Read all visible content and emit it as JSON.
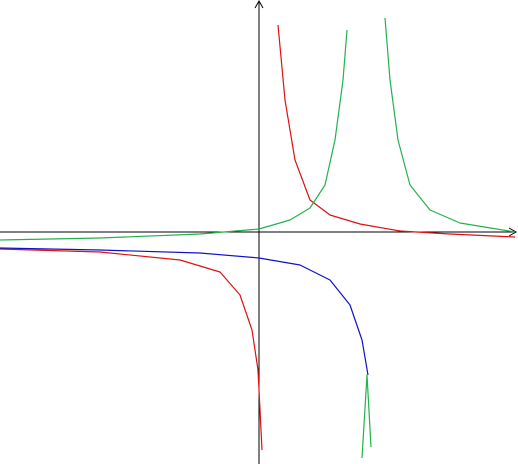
{
  "chart_data": {
    "type": "line",
    "xlim": [
      -5.18,
      5.18
    ],
    "ylim": [
      -4.64,
      4.64
    ],
    "axis_color": "#000000",
    "series": [
      {
        "color": "#dd1111",
        "x": [
          0.38,
          0.52,
          0.72,
          1.02,
          1.42,
          2.02,
          2.82,
          3.82,
          5.12,
          null,
          -5.18,
          -3.18,
          -1.58,
          -0.78,
          -0.38,
          -0.14,
          -0.02,
          0.06
        ],
        "values": [
          4.14,
          2.64,
          1.44,
          0.64,
          0.34,
          0.16,
          0.02,
          -0.04,
          -0.1,
          null,
          -0.34,
          -0.4,
          -0.56,
          -0.8,
          -1.26,
          -1.96,
          -2.76,
          -4.36
        ]
      },
      {
        "color": "#1111cc",
        "x": [
          -5.18,
          -3.18,
          -1.18,
          0,
          0.82,
          1.42,
          1.82,
          2.06,
          2.18
        ],
        "values": [
          -0.32,
          -0.36,
          -0.42,
          -0.52,
          -0.66,
          -0.96,
          -1.46,
          -2.16,
          -2.86
        ]
      },
      {
        "color": "#22b24c",
        "x": [
          -5.18,
          -3.18,
          -1.18,
          0,
          0.62,
          1.02,
          1.32,
          1.52,
          1.68,
          1.76,
          null,
          2.06,
          2.16,
          2.24,
          null,
          2.52,
          2.62,
          2.78,
          3.02,
          3.42,
          4.02,
          5.12
        ],
        "values": [
          -0.16,
          -0.12,
          -0.04,
          0.06,
          0.24,
          0.48,
          0.94,
          1.84,
          3.04,
          4.04,
          null,
          -4.52,
          -2.86,
          -4.3,
          null,
          4.28,
          3.04,
          1.84,
          0.94,
          0.44,
          0.18,
          0
        ]
      }
    ]
  }
}
